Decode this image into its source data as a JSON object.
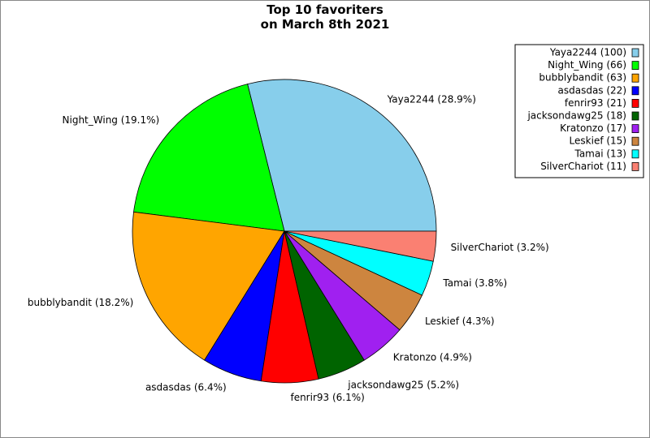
{
  "chart_data": {
    "type": "pie",
    "title": "Top 10 favoriters\non March 8th 2021",
    "values": [
      100,
      66,
      63,
      22,
      21,
      18,
      17,
      15,
      13,
      11
    ],
    "slice_labels": [
      "Yaya2244 (28.9%)",
      "Night_Wing (19.1%)",
      "bubblybandit (18.2%)",
      "asdasdas (6.4%)",
      "fenrir93 (6.1%)",
      "jacksondawg25 (5.2%)",
      "Kratonzo (4.9%)",
      "Leskief (4.3%)",
      "Tamai (3.8%)",
      "SilverChariot (3.2%)"
    ],
    "legend_labels": [
      "Yaya2244 (100)",
      "Night_Wing (66)",
      "bubblybandit (63)",
      "asdasdas (22)",
      "fenrir93 (21)",
      "jacksondawg25 (18)",
      "Kratonzo (17)",
      "Leskief (15)",
      "Tamai (13)",
      "SilverChariot (11)"
    ],
    "colors": [
      "#87ceeb",
      "#00ff00",
      "#ffa500",
      "#0000ff",
      "#ff0000",
      "#006400",
      "#a020f0",
      "#cd853f",
      "#00ffff",
      "#fa8072"
    ],
    "legend": "upper right"
  }
}
